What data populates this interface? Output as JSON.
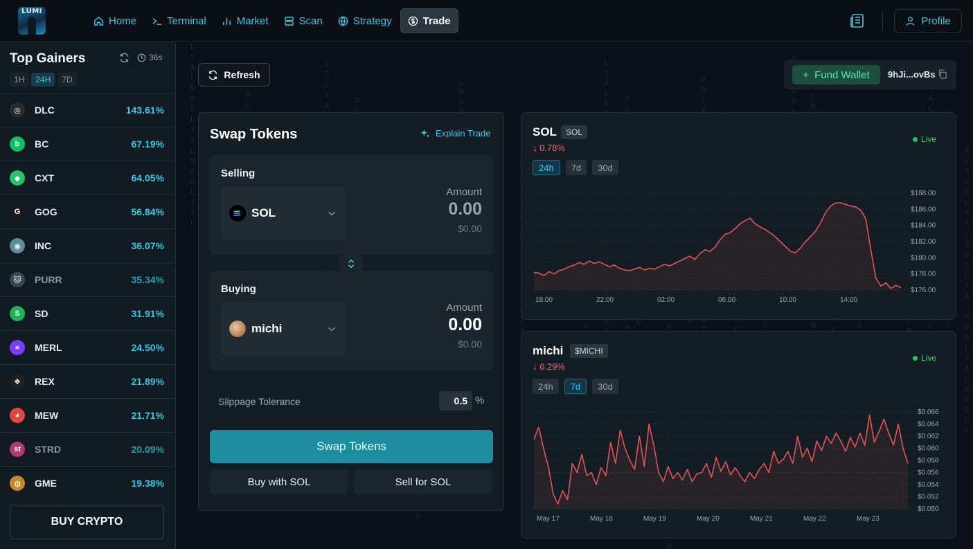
{
  "app": {
    "logo_text": "LUMI"
  },
  "nav": {
    "items": [
      {
        "label": "Home",
        "icon": "home-icon"
      },
      {
        "label": "Terminal",
        "icon": "terminal-icon"
      },
      {
        "label": "Market",
        "icon": "bar-chart-icon"
      },
      {
        "label": "Scan",
        "icon": "scan-icon"
      },
      {
        "label": "Strategy",
        "icon": "globe-icon"
      },
      {
        "label": "Trade",
        "icon": "dollar-icon",
        "active": true
      }
    ],
    "profile_label": "Profile"
  },
  "sidebar": {
    "title": "Top Gainers",
    "timer": "36s",
    "tabs": [
      {
        "label": "1H",
        "active": false
      },
      {
        "label": "24H",
        "active": true
      },
      {
        "label": "7D",
        "active": false
      }
    ],
    "items": [
      {
        "symbol": "DLC",
        "change": "143.61%",
        "color": "#2b2b2b",
        "glyph": "◎"
      },
      {
        "symbol": "BC",
        "change": "67.19%",
        "color": "#10c060",
        "glyph": "b"
      },
      {
        "symbol": "CXT",
        "change": "64.05%",
        "color": "#23c46b",
        "glyph": "◆"
      },
      {
        "symbol": "GOG",
        "change": "56.84%",
        "color": "#1a1a1a",
        "glyph": "G"
      },
      {
        "symbol": "INC",
        "change": "36.07%",
        "color": "#5b8fa0",
        "glyph": "◉"
      },
      {
        "symbol": "PURR",
        "change": "35.34%",
        "color": "#3b4650",
        "glyph": "🐱",
        "dim": true
      },
      {
        "symbol": "SD",
        "change": "31.91%",
        "color": "#1fb25a",
        "glyph": "S"
      },
      {
        "symbol": "MERL",
        "change": "24.50%",
        "color": "#7a3cff",
        "glyph": "✶"
      },
      {
        "symbol": "REX",
        "change": "21.89%",
        "color": "#202020",
        "glyph": "❖"
      },
      {
        "symbol": "MEW",
        "change": "21.71%",
        "color": "#e04848",
        "glyph": "◕"
      },
      {
        "symbol": "STRD",
        "change": "20.09%",
        "color": "#b03a78",
        "glyph": "st",
        "dim": true
      },
      {
        "symbol": "GME",
        "change": "19.38%",
        "color": "#c58a2c",
        "glyph": "◍"
      }
    ],
    "buy_label": "BUY CRYPTO"
  },
  "toolbar": {
    "refresh_label": "Refresh",
    "fund_label": "Fund Wallet",
    "wallet_address": "9hJi...ovBs"
  },
  "swap": {
    "title": "Swap Tokens",
    "explain_label": "Explain Trade",
    "selling": {
      "label": "Selling",
      "token": "SOL",
      "amount_label": "Amount",
      "amount": "0.00",
      "usd": "$0.00"
    },
    "buying": {
      "label": "Buying",
      "token": "michi",
      "amount_label": "Amount",
      "amount": "0.00",
      "usd": "$0.00"
    },
    "slippage_label": "Slippage Tolerance",
    "slippage_value": "0.5",
    "slippage_unit": "%",
    "swap_button": "Swap Tokens",
    "buy_button": "Buy with SOL",
    "sell_button": "Sell for SOL"
  },
  "charts": [
    {
      "name": "SOL",
      "badge": "SOL",
      "change": "↓ 0.78%",
      "live": "Live",
      "tabs": [
        {
          "label": "24h",
          "active": true
        },
        {
          "label": "7d",
          "active": false
        },
        {
          "label": "30d",
          "active": false
        }
      ]
    },
    {
      "name": "michi",
      "badge": "$MICHI",
      "change": "↓ 6.29%",
      "live": "Live",
      "tabs": [
        {
          "label": "24h",
          "active": false
        },
        {
          "label": "7d",
          "active": true
        },
        {
          "label": "30d",
          "active": false
        }
      ]
    }
  ],
  "chart_data": [
    {
      "type": "line",
      "title": "SOL",
      "x_ticks": [
        "18:00",
        "22:00",
        "02:00",
        "06:00",
        "10:00",
        "14:00"
      ],
      "y_ticks": [
        "$188.00",
        "$186.00",
        "$184.00",
        "$182.00",
        "$180.00",
        "$178.00",
        "$176.00"
      ],
      "ylim": [
        176,
        188
      ],
      "color": "#e05555",
      "series": [
        {
          "values": [
            178.2,
            178.1,
            177.8,
            178.3,
            178.0,
            178.4,
            178.6,
            178.9,
            179.1,
            179.4,
            179.2,
            179.6,
            179.3,
            179.5,
            179.2,
            178.9,
            179.1,
            178.7,
            178.5,
            178.4,
            178.6,
            178.8,
            178.5,
            178.7,
            178.6,
            178.9,
            179.2,
            179.0,
            179.3,
            179.6,
            179.9,
            180.2,
            179.8,
            180.5,
            181.0,
            180.8,
            181.3,
            182.2,
            182.9,
            183.1,
            183.6,
            184.2,
            184.6,
            184.9,
            184.2,
            183.8,
            183.5,
            183.1,
            182.6,
            182.0,
            181.4,
            180.8,
            180.6,
            181.2,
            182.0,
            182.6,
            183.3,
            184.3,
            185.6,
            186.4,
            186.8,
            186.8,
            186.6,
            186.4,
            186.3,
            185.9,
            184.8,
            181.0,
            177.5,
            176.5,
            176.9,
            176.2,
            176.6,
            176.3
          ]
        }
      ]
    },
    {
      "type": "line",
      "title": "michi",
      "x_ticks": [
        "May 17",
        "May 18",
        "May 19",
        "May 20",
        "May 21",
        "May 22",
        "May 23"
      ],
      "y_ticks": [
        "$0.066",
        "$0.064",
        "$0.062",
        "$0.060",
        "$0.058",
        "$0.056",
        "$0.054",
        "$0.052",
        "$0.050"
      ],
      "ylim": [
        0.05,
        0.066
      ],
      "color": "#e05555",
      "series": [
        {
          "values": [
            0.0615,
            0.0635,
            0.06,
            0.057,
            0.0525,
            0.0508,
            0.053,
            0.0515,
            0.0575,
            0.056,
            0.059,
            0.0555,
            0.056,
            0.054,
            0.0568,
            0.0555,
            0.061,
            0.0575,
            0.063,
            0.06,
            0.058,
            0.0565,
            0.062,
            0.057,
            0.064,
            0.0605,
            0.056,
            0.0545,
            0.057,
            0.055,
            0.056,
            0.0548,
            0.0565,
            0.0545,
            0.0558,
            0.056,
            0.0575,
            0.0552,
            0.0585,
            0.0562,
            0.0578,
            0.0556,
            0.0568,
            0.0555,
            0.0545,
            0.056,
            0.055,
            0.0565,
            0.0575,
            0.056,
            0.0595,
            0.0575,
            0.0582,
            0.0595,
            0.0575,
            0.062,
            0.0585,
            0.06,
            0.0578,
            0.0612,
            0.0596,
            0.062,
            0.0608,
            0.0625,
            0.0612,
            0.0595,
            0.0618,
            0.0602,
            0.0625,
            0.0605,
            0.0655,
            0.061,
            0.0628,
            0.0648,
            0.0625,
            0.0605,
            0.064,
            0.06,
            0.0575
          ]
        }
      ]
    }
  ]
}
